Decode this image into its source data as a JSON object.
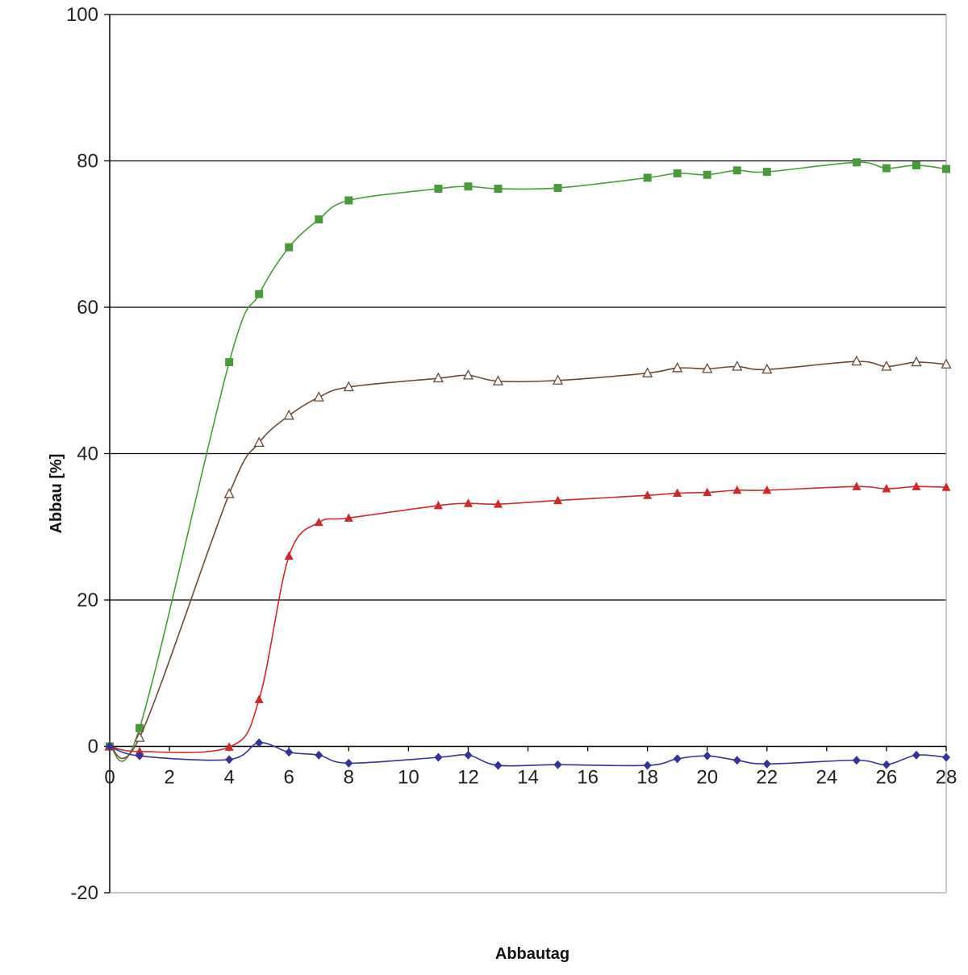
{
  "chart_data": {
    "type": "line",
    "title": "",
    "xlabel": "Abbautag",
    "ylabel": "Abbau [%]",
    "xlim": [
      0,
      28
    ],
    "ylim": [
      -20,
      100
    ],
    "x_ticks": [
      0,
      2,
      4,
      6,
      8,
      10,
      12,
      14,
      16,
      18,
      20,
      22,
      24,
      26,
      28
    ],
    "y_ticks": [
      -20,
      0,
      20,
      40,
      60,
      80,
      100
    ],
    "horizontal_grid": true,
    "legend": false,
    "series": [
      {
        "color": "#4a9a3c",
        "marker": "square-filled",
        "x": [
          0,
          1,
          4,
          5,
          6,
          7,
          8,
          11,
          12,
          13,
          15,
          18,
          19,
          20,
          21,
          22,
          25,
          26,
          27,
          28
        ],
        "y": [
          0,
          2.5,
          52.5,
          61.8,
          68.2,
          72.0,
          74.6,
          76.2,
          76.5,
          76.2,
          76.3,
          77.7,
          78.3,
          78.1,
          78.7,
          78.5,
          79.8,
          79.0,
          79.4,
          78.9
        ]
      },
      {
        "color": "#6b4a35",
        "marker": "triangle-open",
        "x": [
          0,
          1,
          4,
          5,
          6,
          7,
          8,
          11,
          12,
          13,
          15,
          18,
          19,
          20,
          21,
          22,
          25,
          26,
          27,
          28
        ],
        "y": [
          0,
          1.2,
          34.5,
          41.5,
          45.2,
          47.7,
          49.1,
          50.3,
          50.7,
          49.9,
          50.0,
          51.0,
          51.7,
          51.6,
          51.9,
          51.5,
          52.6,
          51.9,
          52.5,
          52.2
        ]
      },
      {
        "color": "#cc2a2a",
        "marker": "triangle-filled",
        "x": [
          0,
          1,
          4,
          5,
          6,
          7,
          8,
          11,
          12,
          13,
          15,
          18,
          19,
          20,
          21,
          22,
          25,
          26,
          27,
          28
        ],
        "y": [
          0,
          -0.7,
          -0.1,
          6.4,
          26.0,
          30.6,
          31.2,
          32.9,
          33.2,
          33.1,
          33.6,
          34.3,
          34.6,
          34.7,
          35.0,
          35.0,
          35.5,
          35.2,
          35.5,
          35.4
        ]
      },
      {
        "color": "#33339a",
        "marker": "diamond-filled",
        "x": [
          0,
          1,
          4,
          5,
          6,
          7,
          8,
          11,
          12,
          13,
          15,
          18,
          19,
          20,
          21,
          22,
          25,
          26,
          27,
          28
        ],
        "y": [
          0,
          -1.3,
          -1.8,
          0.5,
          -0.8,
          -1.2,
          -2.3,
          -1.5,
          -1.2,
          -2.6,
          -2.5,
          -2.6,
          -1.7,
          -1.3,
          -1.9,
          -2.4,
          -1.9,
          -2.5,
          -1.2,
          -1.5
        ]
      }
    ]
  }
}
